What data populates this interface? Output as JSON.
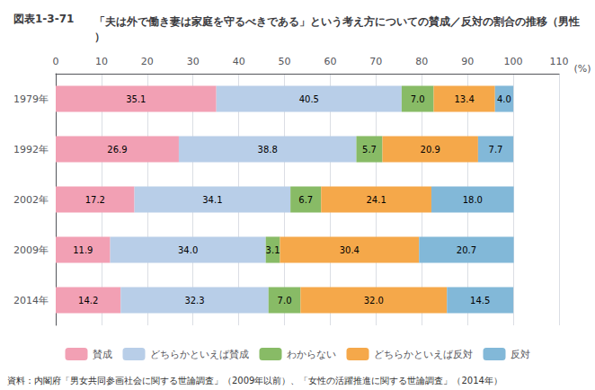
{
  "chart_data": {
    "type": "bar",
    "orientation": "horizontal",
    "stacked": true,
    "title": "「夫は外で働き妻は家庭を守るべきである」という考え方についての賛成／反対の割合の推移（男性）",
    "annotations": [
      "図表1-3-71",
      "資料：内閣府「男女共同参画社会に関する世論調査」（2009年以前）、「女性の活躍推進に関する世論調査」（2014年）"
    ],
    "x_label": "(%)",
    "categories": [
      "1979年",
      "1992年",
      "2002年",
      "2009年",
      "2014年"
    ],
    "series": [
      {
        "name": "賛成",
        "color": "#F2A0B4",
        "values": [
          35.1,
          26.9,
          17.2,
          11.9,
          14.2
        ],
        "value_labels": [
          "35.1",
          "26.9",
          "17.2",
          "11.9",
          "14.2"
        ]
      },
      {
        "name": "どちらかといえば賛成",
        "color": "#B8CEE8",
        "values": [
          40.5,
          38.8,
          34.1,
          34.0,
          32.3
        ],
        "value_labels": [
          "40.5",
          "38.8",
          "34.1",
          "34.0",
          "32.3"
        ]
      },
      {
        "name": "わからない",
        "color": "#88BB66",
        "values": [
          7.0,
          5.7,
          6.7,
          3.1,
          7.0
        ],
        "value_labels": [
          "7.0",
          "5.7",
          "6.7",
          "3.1",
          "7.0"
        ]
      },
      {
        "name": "どちらかといえば反対",
        "color": "#F5A84A",
        "values": [
          13.4,
          20.9,
          24.1,
          30.4,
          32.0
        ],
        "value_labels": [
          "13.4",
          "20.9",
          "24.1",
          "30.4",
          "32.0"
        ]
      },
      {
        "name": "反対",
        "color": "#82B8D8",
        "values": [
          4.0,
          7.7,
          18.0,
          20.7,
          14.5
        ],
        "value_labels": [
          "4.0",
          "7.7",
          "18.0",
          "20.7",
          "14.5"
        ]
      }
    ],
    "xlim": [
      0,
      110
    ],
    "xticks": [
      0,
      10,
      20,
      30,
      40,
      50,
      60,
      70,
      80,
      90,
      100,
      110
    ],
    "grid": true,
    "legend": "bottom",
    "data_labels": true
  }
}
